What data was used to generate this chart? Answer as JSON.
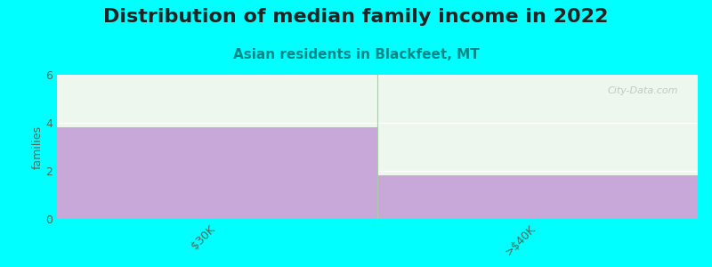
{
  "title": "Distribution of median family income in 2022",
  "subtitle": "Asian residents in Blackfeet, MT",
  "categories": [
    "$30K",
    ">$40K"
  ],
  "values": [
    3.8,
    1.8
  ],
  "bar_color": "#c8a8d8",
  "background_color": "#00FFFF",
  "plot_bg_color": "#edf7ed",
  "ylabel": "families",
  "ylim": [
    0,
    6
  ],
  "yticks": [
    0,
    2,
    4,
    6
  ],
  "title_fontsize": 16,
  "subtitle_fontsize": 11,
  "subtitle_color": "#008888",
  "tick_label_color": "#556655",
  "watermark": "City-Data.com",
  "bar_width": 1.0
}
